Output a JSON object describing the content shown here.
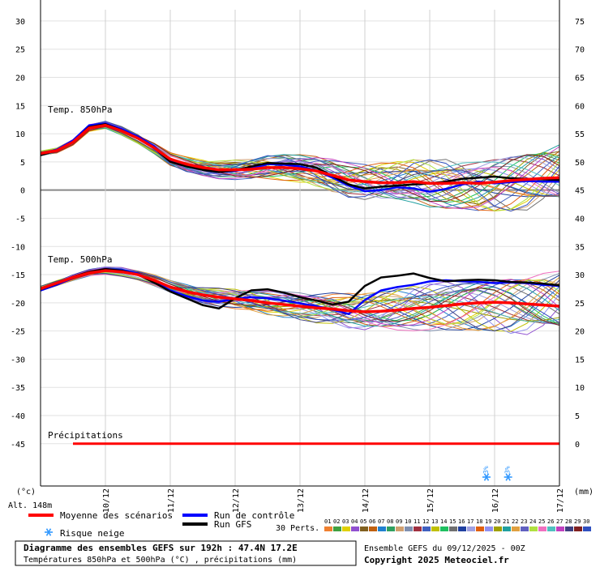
{
  "chart_data": {
    "type": "line",
    "x_dates": [
      "10/12",
      "11/12",
      "12/12",
      "13/12",
      "14/12",
      "15/12",
      "16/12",
      "17/12"
    ],
    "xlim": [
      0,
      192
    ],
    "y_left_ticks": [
      30,
      25,
      20,
      15,
      10,
      5,
      0,
      -5,
      -10,
      -15,
      -20,
      -25,
      -30,
      -35,
      -40,
      -45
    ],
    "y_right_ticks": [
      75,
      70,
      65,
      60,
      55,
      50,
      45,
      40,
      35,
      30,
      25,
      20,
      15,
      10,
      5,
      0
    ],
    "ylim_left": [
      -52.5,
      32
    ],
    "y_left_unit": "(°c)",
    "y_right_unit": "(mm)",
    "labels": {
      "t850": "Temp. 850hPa",
      "t500": "Temp. 500hPa",
      "precip": "Précipitations"
    },
    "hours": [
      0,
      6,
      12,
      18,
      24,
      30,
      36,
      42,
      48,
      54,
      60,
      66,
      72,
      78,
      84,
      90,
      96,
      102,
      108,
      114,
      120,
      126,
      132,
      138,
      144,
      150,
      156,
      162,
      168,
      174,
      180,
      186,
      192
    ],
    "series": [
      {
        "name": "Moyenne des scénarios",
        "level": "850",
        "color": "#ff0000",
        "values": [
          6.5,
          7,
          8.5,
          11,
          11.5,
          10.5,
          9.2,
          7.5,
          5.5,
          4.6,
          4.0,
          3.6,
          3.6,
          3.7,
          4.0,
          4.0,
          3.8,
          3.4,
          2.6,
          1.8,
          1.5,
          1.3,
          1.3,
          1.5,
          1.2,
          1.2,
          1.3,
          1.2,
          1.4,
          1.7,
          1.9,
          2.1,
          2.2
        ]
      },
      {
        "name": "Run de contrôle",
        "level": "850",
        "color": "#0000ff",
        "values": [
          6.3,
          7.2,
          8.8,
          11.5,
          11.8,
          10.8,
          9.5,
          7.8,
          5.2,
          4.4,
          3.6,
          3.2,
          3.4,
          3.9,
          4.6,
          4.5,
          4.2,
          3.5,
          2.2,
          0.8,
          -0.2,
          0.0,
          0.5,
          0.3,
          -0.3,
          0.2,
          1.0,
          1.5,
          1.2,
          1.4,
          1.6,
          1.5,
          1.5
        ]
      },
      {
        "name": "Run GFS",
        "level": "850",
        "color": "#000000",
        "values": [
          6.2,
          7.0,
          8.5,
          11.2,
          11.7,
          10.6,
          9.2,
          7.5,
          5.0,
          4.2,
          3.6,
          3.2,
          3.5,
          4.2,
          4.8,
          4.7,
          4.6,
          4.0,
          2.5,
          1.0,
          0.3,
          0.6,
          0.8,
          1.0,
          1.2,
          1.5,
          2.0,
          2.2,
          2.4,
          2.1,
          2.0,
          1.9,
          1.8
        ]
      },
      {
        "name": "Moyenne des scénarios",
        "level": "500",
        "color": "#ff0000",
        "values": [
          -17.5,
          -16.5,
          -15.5,
          -14.7,
          -14.3,
          -14.5,
          -15.0,
          -16.0,
          -17.2,
          -18.0,
          -18.6,
          -19.0,
          -19.3,
          -19.6,
          -20.0,
          -20.3,
          -20.6,
          -20.9,
          -21.1,
          -21.4,
          -21.6,
          -21.5,
          -21.3,
          -21.0,
          -20.8,
          -20.5,
          -20.2,
          -20.0,
          -19.9,
          -20.0,
          -20.2,
          -20.4,
          -20.6
        ]
      },
      {
        "name": "Run de contrôle",
        "level": "500",
        "color": "#0000ff",
        "values": [
          -17.8,
          -16.8,
          -15.6,
          -14.6,
          -14.0,
          -14.2,
          -14.8,
          -16.2,
          -17.8,
          -18.8,
          -19.6,
          -19.8,
          -19.3,
          -19.0,
          -19.2,
          -19.6,
          -20.1,
          -20.6,
          -21.2,
          -22.0,
          -19.5,
          -17.8,
          -17.2,
          -16.8,
          -16.2,
          -16.0,
          -16.2,
          -16.3,
          -16.5,
          -16.4,
          -16.5,
          -16.8,
          -17.0
        ]
      },
      {
        "name": "Run GFS",
        "level": "500",
        "color": "#000000",
        "values": [
          -17.6,
          -16.6,
          -15.4,
          -14.5,
          -14.0,
          -14.3,
          -15.0,
          -16.4,
          -18.0,
          -19.2,
          -20.4,
          -21.0,
          -19.2,
          -17.8,
          -17.6,
          -18.2,
          -19.0,
          -19.6,
          -20.3,
          -19.8,
          -17.0,
          -15.5,
          -15.2,
          -14.8,
          -15.6,
          -16.2,
          -16.0,
          -15.9,
          -16.0,
          -16.3,
          -16.4,
          -16.6,
          -16.9
        ]
      }
    ],
    "precip_mean_mm": 0,
    "snow_risk_markers": [
      {
        "hour": 165,
        "percent": "3%"
      },
      {
        "hour": 173,
        "percent": "3%"
      }
    ]
  },
  "legend": {
    "alt": "Alt. 148m",
    "mean": "Moyenne des scénarios",
    "control": "Run de contrôle",
    "gfs": "Run GFS",
    "snow": "Risque neige",
    "perts_label": "30 Perts.",
    "perts_numbers": [
      "01",
      "02",
      "03",
      "04",
      "05",
      "06",
      "07",
      "08",
      "09",
      "10",
      "11",
      "12",
      "13",
      "14",
      "15",
      "16",
      "17",
      "18",
      "19",
      "20",
      "21",
      "22",
      "23",
      "24",
      "25",
      "26",
      "27",
      "28",
      "29",
      "30"
    ],
    "perts_colors": [
      "#f08030",
      "#40a040",
      "#e0d000",
      "#9050d0",
      "#806020",
      "#c06010",
      "#2080d0",
      "#30a060",
      "#d0a070",
      "#8090b0",
      "#a03040",
      "#4060c0",
      "#c0c000",
      "#20c060",
      "#707070",
      "#2040a0",
      "#a0a0e0",
      "#e06010",
      "#9090f0",
      "#a0a000",
      "#20a0a0",
      "#e0a040",
      "#6060c0",
      "#b0e040",
      "#f070c0",
      "#50c0c0",
      "#c040c0",
      "#404080",
      "#802020",
      "#3050c0"
    ]
  },
  "info": {
    "title": "Diagramme des ensembles GEFS sur 192h : 47.4N 17.2E",
    "subtitle": "Températures 850hPa et 500hPa (°C) , précipitations (mm)",
    "run": "Ensemble GEFS du 09/12/2025 - 00Z",
    "copyright": "Copyright 2025 Meteociel.fr"
  }
}
